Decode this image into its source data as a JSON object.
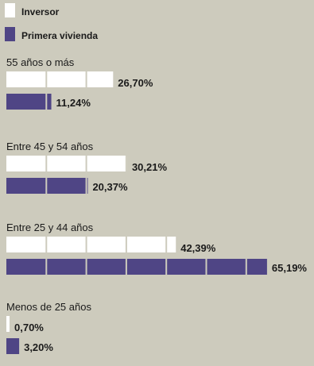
{
  "chart_data": {
    "type": "bar",
    "orientation": "horizontal",
    "categories": [
      "55 años o más",
      "Entre 45 y 54 años",
      "Entre 25 y 44 años",
      "Menos de 25 años"
    ],
    "series": [
      {
        "name": "Inversor",
        "values": [
          26.7,
          30.21,
          42.39,
          0.7
        ],
        "labels": [
          "26,70%",
          "30,21%",
          "42,39%",
          "0,70%"
        ],
        "color": "#ffffff"
      },
      {
        "name": "Primera vivienda",
        "values": [
          11.24,
          20.37,
          65.19,
          3.2
        ],
        "labels": [
          "11,24%",
          "20,37%",
          "65,19%",
          "3,20%"
        ],
        "color": "#4f4585"
      }
    ],
    "legend": "top-left",
    "grid": false
  },
  "colors": {
    "background": "#cdcbbd",
    "inversor": "#ffffff",
    "primera_vivienda": "#4f4585"
  }
}
